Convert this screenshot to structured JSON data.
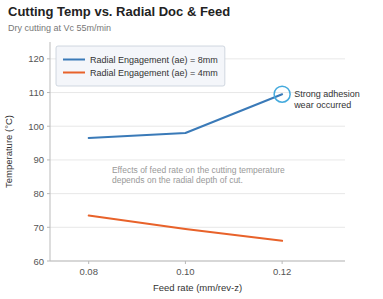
{
  "chart_data": {
    "type": "line",
    "title": "Cutting Temp vs. Radial Doc & Feed",
    "subtitle": "Dry cutting at Vc 55m/min",
    "x_label": "Feed rate (mm/rev-z)",
    "y_label": "Temperature (°C)",
    "x": [
      0.08,
      0.1,
      0.12
    ],
    "series": [
      {
        "name": "Radial Engagement (ae) = 8mm",
        "color": "#3a7ab8",
        "values": [
          96.5,
          98.0,
          109.5
        ]
      },
      {
        "name": "Radial Engagement (ae) = 4mm",
        "color": "#e8622a",
        "values": [
          73.5,
          69.5,
          66.0
        ]
      }
    ],
    "xlim": [
      0.072,
      0.133
    ],
    "ylim": [
      60,
      125
    ],
    "xticks": [
      0.08,
      {
        "value": 0.1,
        "label": "0.10"
      },
      0.12
    ],
    "yticks": [
      60,
      70,
      80,
      90,
      100,
      110,
      120
    ],
    "grid": "y",
    "legend": "upper left",
    "annotations": [
      {
        "text": "Strong adhesion\nwear occurred",
        "x": 0.12,
        "y": 109.5,
        "color": "#44aadd"
      },
      {
        "text": "Effects of feed rate on the cutting temperature\ndepends on the radial depth of cut."
      }
    ]
  }
}
